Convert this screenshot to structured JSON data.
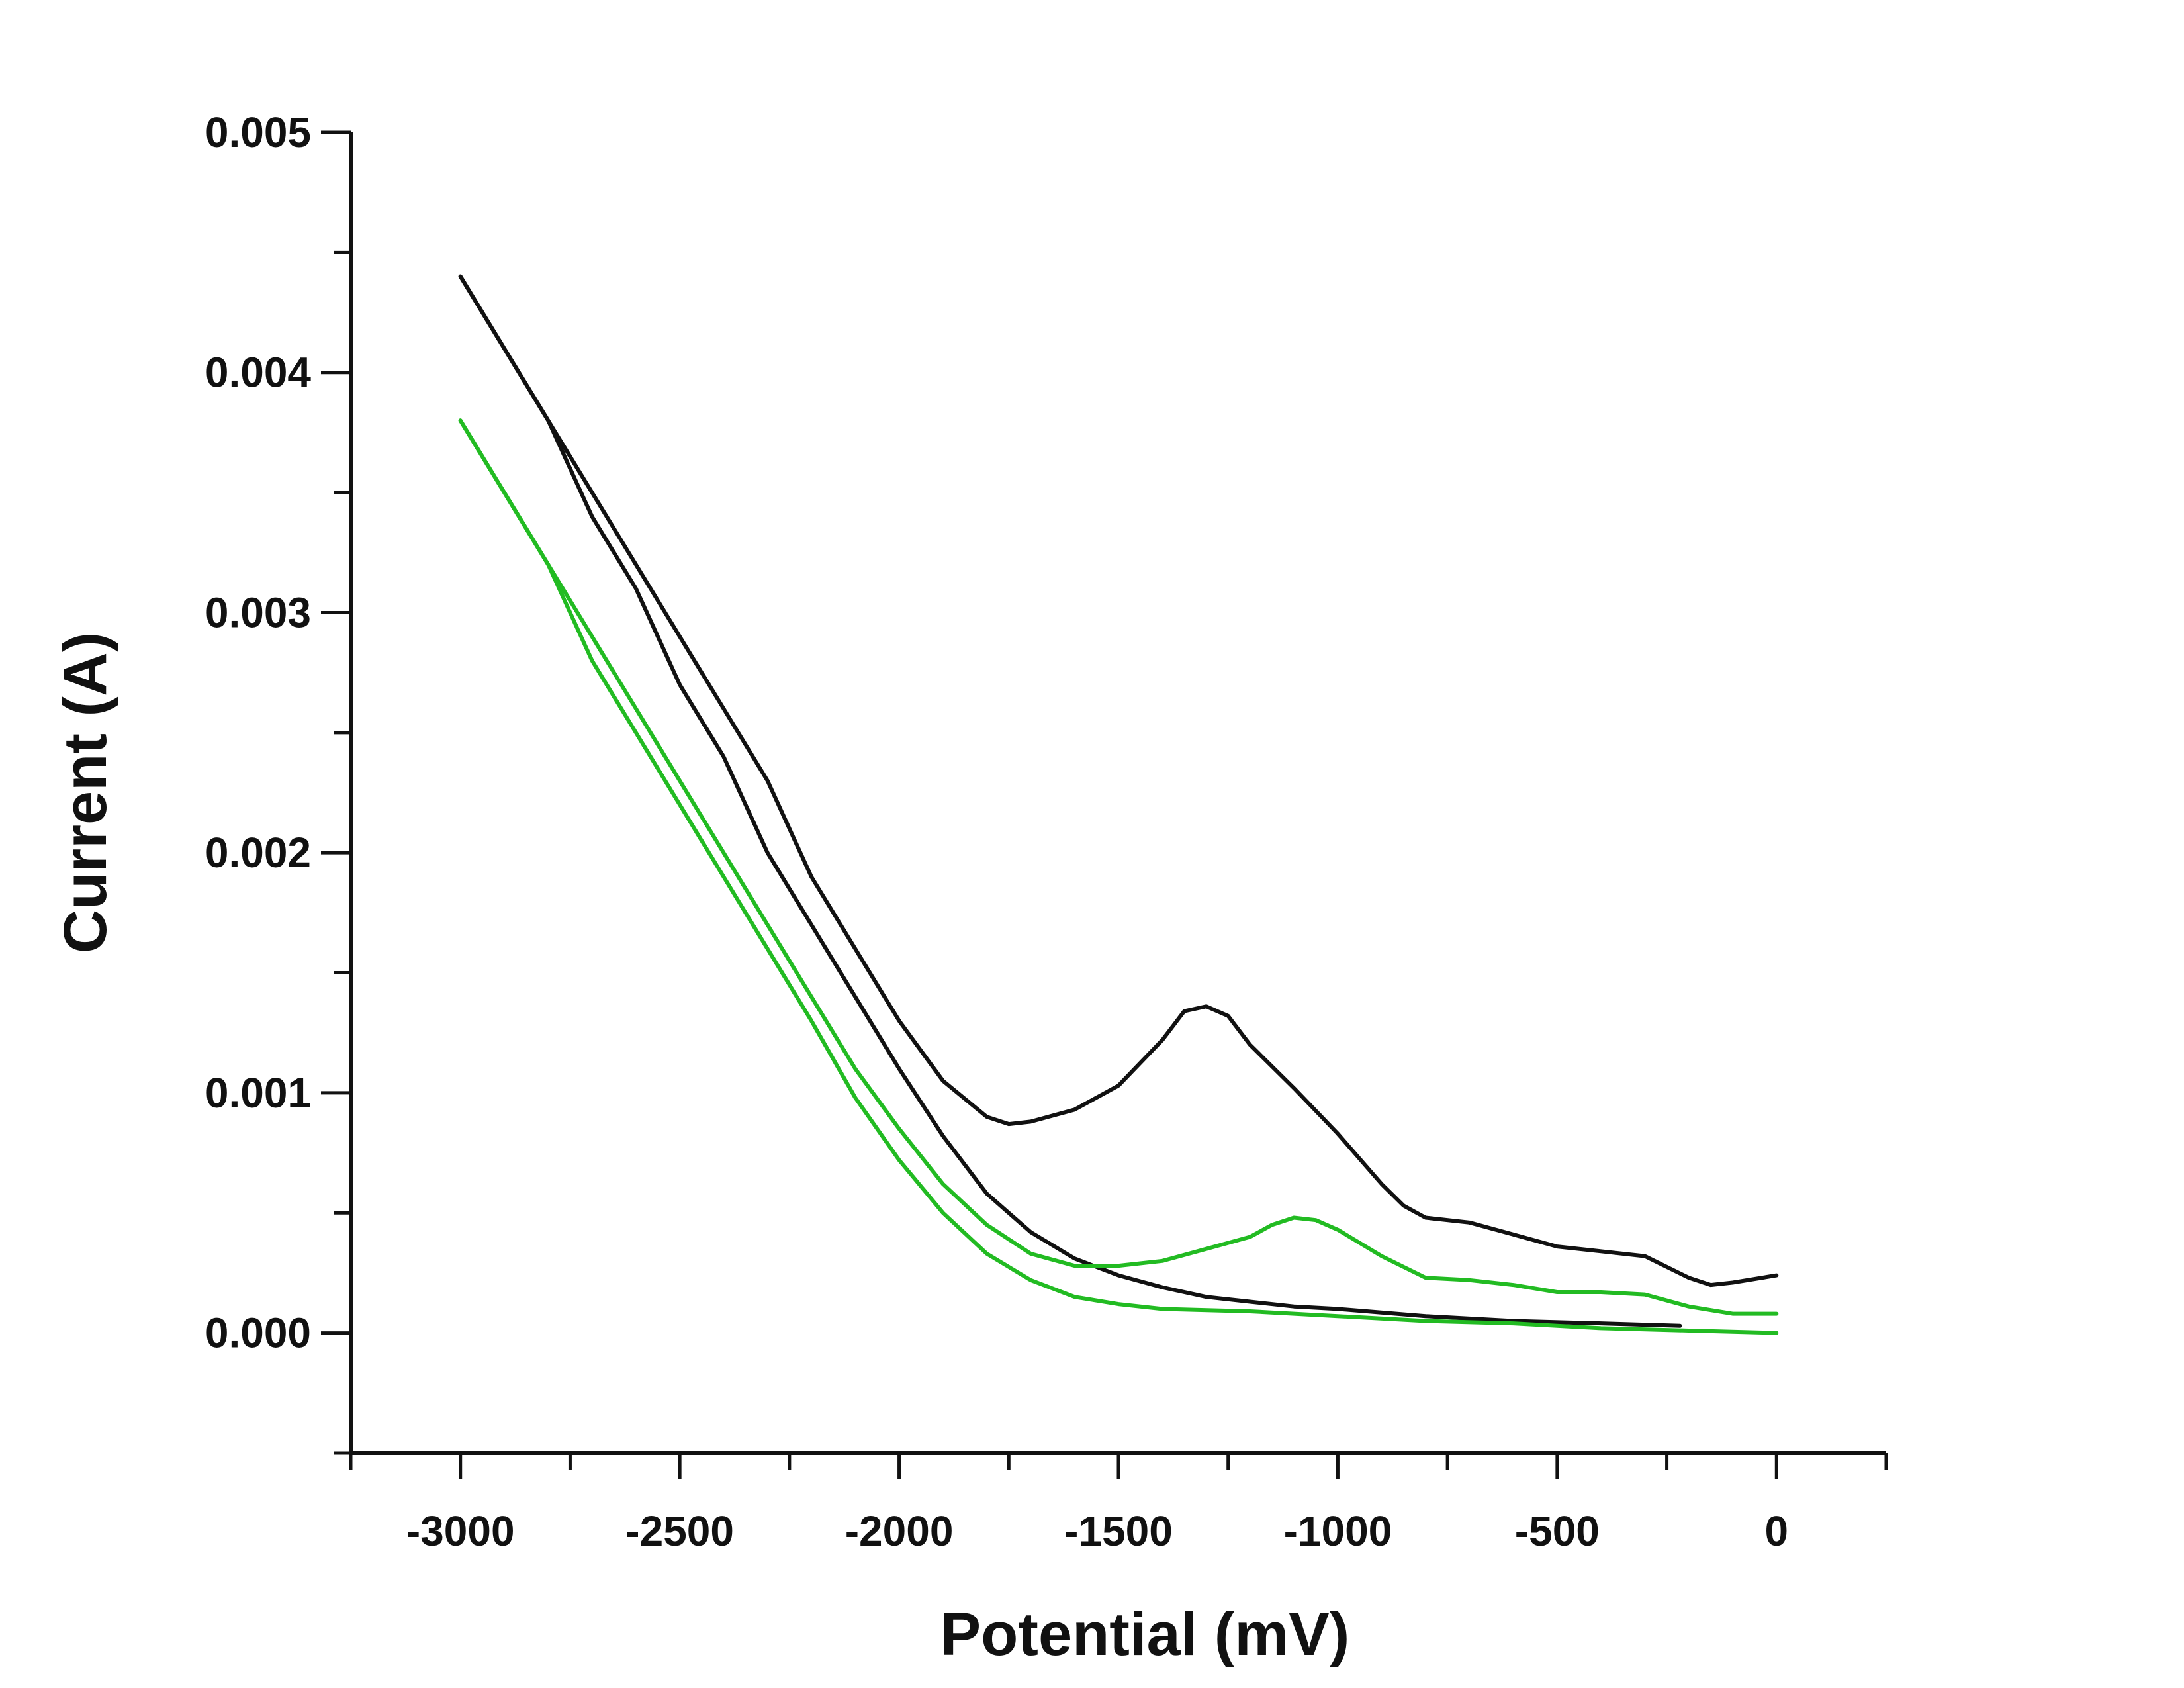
{
  "chart_data": {
    "type": "line",
    "title": "",
    "xlabel": "Potential (mV)",
    "ylabel": "Current (A)",
    "xlim": [
      -3250,
      250
    ],
    "ylim": [
      -0.0005,
      0.005
    ],
    "x_ticks": [
      -3000,
      -2500,
      -2000,
      -1500,
      -1000,
      -500,
      0
    ],
    "x_tick_labels": [
      "-3000",
      "-2500",
      "-2000",
      "-1500",
      "-1000",
      "-500",
      "0"
    ],
    "y_ticks": [
      0.0,
      0.001,
      0.002,
      0.003,
      0.004,
      0.005
    ],
    "y_tick_labels": [
      "0.000",
      "0.001",
      "0.002",
      "0.003",
      "0.004",
      "0.005"
    ],
    "grid": false,
    "legend": "none",
    "series": [
      {
        "color": "#111111",
        "points": [
          [
            -3000,
            0.0044
          ],
          [
            -2900,
            0.0041
          ],
          [
            -2800,
            0.0038
          ],
          [
            -2700,
            0.0035
          ],
          [
            -2600,
            0.0032
          ],
          [
            -2500,
            0.0029
          ],
          [
            -2400,
            0.0026
          ],
          [
            -2300,
            0.0023
          ],
          [
            -2200,
            0.0019
          ],
          [
            -2100,
            0.0016
          ],
          [
            -2000,
            0.0013
          ],
          [
            -1900,
            0.00105
          ],
          [
            -1800,
            0.0009
          ],
          [
            -1750,
            0.00087
          ],
          [
            -1700,
            0.00088
          ],
          [
            -1600,
            0.00093
          ],
          [
            -1500,
            0.00103
          ],
          [
            -1400,
            0.00122
          ],
          [
            -1350,
            0.00134
          ],
          [
            -1300,
            0.00136
          ],
          [
            -1250,
            0.00132
          ],
          [
            -1200,
            0.0012
          ],
          [
            -1100,
            0.00102
          ],
          [
            -1000,
            0.00083
          ],
          [
            -900,
            0.00062
          ],
          [
            -850,
            0.00053
          ],
          [
            -800,
            0.00048
          ],
          [
            -700,
            0.00046
          ],
          [
            -600,
            0.00041
          ],
          [
            -500,
            0.00036
          ],
          [
            -400,
            0.00034
          ],
          [
            -300,
            0.00032
          ],
          [
            -200,
            0.00023
          ],
          [
            -150,
            0.0002
          ],
          [
            -100,
            0.00021
          ],
          [
            0,
            0.00024
          ]
        ]
      },
      {
        "color": "#111111",
        "points": [
          [
            -3000,
            0.0044
          ],
          [
            -2900,
            0.0041
          ],
          [
            -2800,
            0.0038
          ],
          [
            -2700,
            0.0034
          ],
          [
            -2600,
            0.0031
          ],
          [
            -2500,
            0.0027
          ],
          [
            -2400,
            0.0024
          ],
          [
            -2300,
            0.002
          ],
          [
            -2200,
            0.0017
          ],
          [
            -2100,
            0.0014
          ],
          [
            -2000,
            0.0011
          ],
          [
            -1900,
            0.00082
          ],
          [
            -1800,
            0.00058
          ],
          [
            -1700,
            0.00042
          ],
          [
            -1600,
            0.00031
          ],
          [
            -1500,
            0.00024
          ],
          [
            -1400,
            0.00019
          ],
          [
            -1300,
            0.00015
          ],
          [
            -1200,
            0.00013
          ],
          [
            -1100,
            0.00011
          ],
          [
            -1000,
            0.0001
          ],
          [
            -800,
            7e-05
          ],
          [
            -600,
            5e-05
          ],
          [
            -400,
            4e-05
          ],
          [
            -220,
            3e-05
          ]
        ]
      },
      {
        "color": "#22bb22",
        "points": [
          [
            -3000,
            0.0038
          ],
          [
            -2900,
            0.0035
          ],
          [
            -2800,
            0.0032
          ],
          [
            -2700,
            0.0029
          ],
          [
            -2600,
            0.0026
          ],
          [
            -2500,
            0.0023
          ],
          [
            -2400,
            0.002
          ],
          [
            -2300,
            0.0017
          ],
          [
            -2200,
            0.0014
          ],
          [
            -2100,
            0.0011
          ],
          [
            -2000,
            0.00085
          ],
          [
            -1900,
            0.00062
          ],
          [
            -1800,
            0.00045
          ],
          [
            -1700,
            0.00033
          ],
          [
            -1600,
            0.00028
          ],
          [
            -1500,
            0.00028
          ],
          [
            -1400,
            0.0003
          ],
          [
            -1300,
            0.00035
          ],
          [
            -1200,
            0.0004
          ],
          [
            -1150,
            0.00045
          ],
          [
            -1100,
            0.00048
          ],
          [
            -1050,
            0.00047
          ],
          [
            -1000,
            0.00043
          ],
          [
            -900,
            0.00032
          ],
          [
            -800,
            0.00023
          ],
          [
            -700,
            0.00022
          ],
          [
            -600,
            0.0002
          ],
          [
            -500,
            0.00017
          ],
          [
            -400,
            0.00017
          ],
          [
            -300,
            0.00016
          ],
          [
            -200,
            0.00011
          ],
          [
            -100,
            8e-05
          ],
          [
            0,
            8e-05
          ]
        ]
      },
      {
        "color": "#22bb22",
        "points": [
          [
            -3000,
            0.0038
          ],
          [
            -2900,
            0.0035
          ],
          [
            -2800,
            0.0032
          ],
          [
            -2700,
            0.0028
          ],
          [
            -2600,
            0.0025
          ],
          [
            -2500,
            0.0022
          ],
          [
            -2400,
            0.0019
          ],
          [
            -2300,
            0.0016
          ],
          [
            -2200,
            0.0013
          ],
          [
            -2100,
            0.00098
          ],
          [
            -2000,
            0.00072
          ],
          [
            -1900,
            0.0005
          ],
          [
            -1800,
            0.00033
          ],
          [
            -1700,
            0.00022
          ],
          [
            -1600,
            0.00015
          ],
          [
            -1500,
            0.00012
          ],
          [
            -1400,
            0.0001
          ],
          [
            -1200,
            9e-05
          ],
          [
            -1000,
            7e-05
          ],
          [
            -800,
            5e-05
          ],
          [
            -600,
            4e-05
          ],
          [
            -400,
            2e-05
          ],
          [
            -200,
            1e-05
          ],
          [
            0,
            0.0
          ]
        ]
      }
    ]
  }
}
